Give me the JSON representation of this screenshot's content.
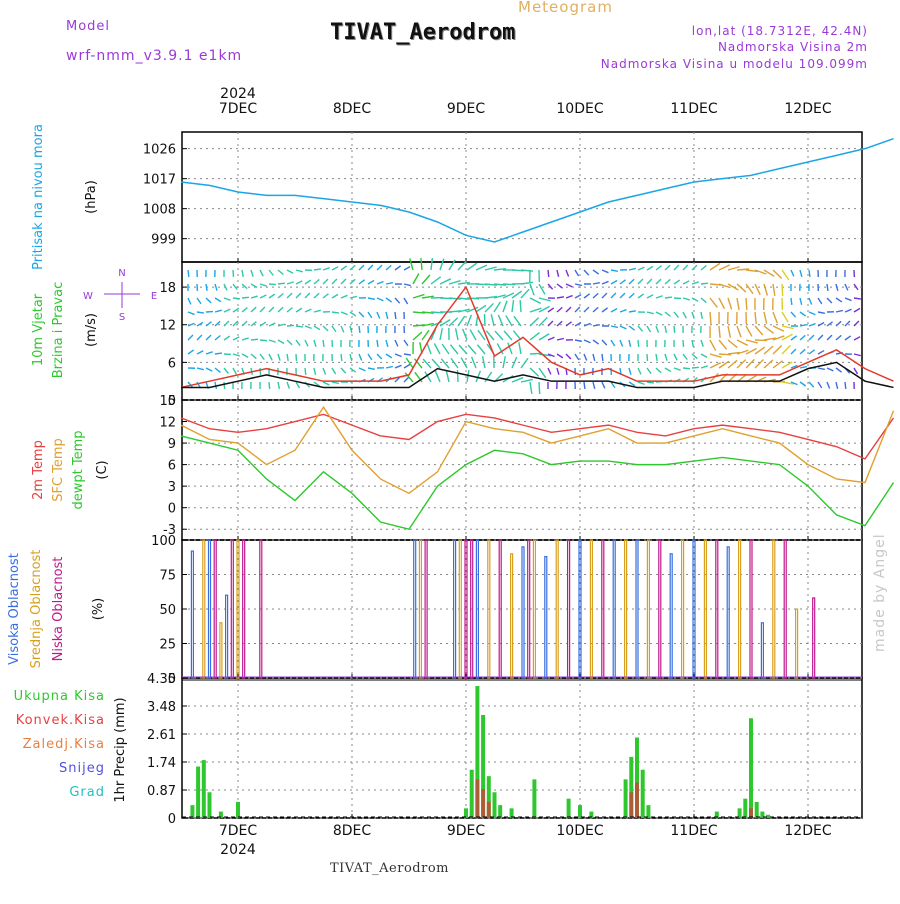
{
  "header": {
    "model_label": "Model",
    "model_name": "wrf-nmm_v3.9.1 e1km",
    "chart_type": "Meteogram",
    "title": "TIVAT_Aerodrom",
    "lonlat": "lon,lat (18.7312E, 42.4N)",
    "elevation": "Nadmorska Visina 2m",
    "model_elevation": "Nadmorska Visina u modelu 109.099m",
    "footer": "TIVAT_Aerodrom",
    "credit": "made by Angel"
  },
  "colors": {
    "pressure": "#1aa6e6",
    "wind_speed": "#111111",
    "wind_gust": "#e23a2a",
    "temp2m": "#e84040",
    "sfc_temp": "#e0a030",
    "dewpoint": "#2ec82e",
    "cloud_high": "#3a6ee0",
    "cloud_mid": "#d9a020",
    "cloud_low": "#c0188c",
    "precip_total": "#2ec82e",
    "precip_conv": "#d63a3a",
    "label_purple": "#9a3ad8",
    "grid": "#888888"
  },
  "chart_data": [
    {
      "type": "line",
      "panel": "pressure",
      "ylabel": [
        "Pritisak na nivou mora",
        "(hPa)"
      ],
      "yticks": [
        999,
        1008,
        1017,
        1026
      ],
      "ylim": [
        992,
        1031
      ],
      "grid": true,
      "series": [
        {
          "x": [
            0,
            0.25,
            0.5,
            0.75,
            1.0,
            1.25,
            1.5,
            1.75,
            2.0,
            2.25,
            2.5,
            2.75,
            3.0,
            3.25,
            3.5,
            3.75,
            4.0,
            4.25,
            4.5,
            4.75,
            5.0,
            5.25,
            5.5,
            5.75,
            6.0,
            6.25
          ],
          "values": [
            1016,
            1015,
            1013,
            1012,
            1012,
            1011,
            1010,
            1009,
            1007,
            1004,
            1000,
            998,
            1001,
            1004,
            1007,
            1010,
            1012,
            1014,
            1016,
            1017,
            1018,
            1020,
            1022,
            1024,
            1026,
            1029
          ]
        }
      ]
    },
    {
      "type": "line",
      "panel": "wind",
      "ylabel": [
        "10m Vjetar",
        "Brzina i Pravac",
        "(m/s)"
      ],
      "yticks": [
        0,
        6,
        12,
        18
      ],
      "ylim": [
        0,
        22
      ],
      "grid": true,
      "compass": {
        "n": "N",
        "s": "S",
        "e": "E",
        "w": "W"
      },
      "series": [
        {
          "x": [
            0,
            0.25,
            0.5,
            0.75,
            1.0,
            1.25,
            1.5,
            1.75,
            2.0,
            2.25,
            2.5,
            2.75,
            3.0,
            3.25,
            3.5,
            3.75,
            4.0,
            4.25,
            4.5,
            4.75,
            5.0,
            5.25,
            5.5,
            5.75,
            6.0,
            6.25
          ],
          "values": [
            2,
            3,
            4,
            5,
            4,
            3,
            3,
            3,
            4,
            12,
            18,
            7,
            10,
            6,
            4,
            5,
            3,
            3,
            3,
            4,
            4,
            4,
            6,
            8,
            5,
            3
          ]
        },
        {
          "x": [
            0,
            0.25,
            0.5,
            0.75,
            1.0,
            1.25,
            1.5,
            1.75,
            2.0,
            2.25,
            2.5,
            2.75,
            3.0,
            3.25,
            3.5,
            3.75,
            4.0,
            4.25,
            4.5,
            4.75,
            5.0,
            5.25,
            5.5,
            5.75,
            6.0,
            6.25
          ],
          "values": [
            2,
            2,
            3,
            4,
            3,
            2,
            2,
            2,
            2,
            5,
            4,
            3,
            4,
            3,
            3,
            3,
            2,
            2,
            2,
            3,
            3,
            3,
            5,
            6,
            3,
            2
          ]
        }
      ]
    },
    {
      "type": "line",
      "panel": "temperature",
      "ylabel": [
        "2m Temp",
        "SFC Temp",
        "dewpt Temp",
        "(C)"
      ],
      "yticks": [
        -3,
        0,
        3,
        6,
        9,
        12,
        15
      ],
      "ylim": [
        -4.5,
        15
      ],
      "grid": true,
      "series": [
        {
          "name": "2m Temp",
          "x": [
            0,
            0.25,
            0.5,
            0.75,
            1.0,
            1.25,
            1.5,
            1.75,
            2.0,
            2.25,
            2.5,
            2.75,
            3.0,
            3.25,
            3.5,
            3.75,
            4.0,
            4.25,
            4.5,
            4.75,
            5.0,
            5.25,
            5.5,
            5.75,
            6.0,
            6.25
          ],
          "values": [
            12.5,
            11,
            10.5,
            11,
            12,
            13,
            11.5,
            10,
            9.5,
            12,
            13,
            12.5,
            11.5,
            10.5,
            11,
            11.5,
            10.5,
            10,
            11,
            11.5,
            11,
            10.5,
            9.5,
            8.5,
            6.8,
            12.5
          ]
        },
        {
          "name": "SFC Temp",
          "x": [
            0,
            0.25,
            0.5,
            0.75,
            1.0,
            1.25,
            1.5,
            1.75,
            2.0,
            2.25,
            2.5,
            2.75,
            3.0,
            3.25,
            3.5,
            3.75,
            4.0,
            4.25,
            4.5,
            4.75,
            5.0,
            5.25,
            5.5,
            5.75,
            6.0,
            6.25
          ],
          "values": [
            11.5,
            9.5,
            9,
            6,
            8,
            14,
            8,
            4,
            2,
            5,
            12,
            11,
            10.5,
            9,
            10,
            11,
            9,
            9,
            10,
            11,
            10,
            9,
            6,
            4,
            3.5,
            13.5
          ]
        },
        {
          "name": "dewpt Temp",
          "x": [
            0,
            0.25,
            0.5,
            0.75,
            1.0,
            1.25,
            1.5,
            1.75,
            2.0,
            2.25,
            2.5,
            2.75,
            3.0,
            3.25,
            3.5,
            3.75,
            4.0,
            4.25,
            4.5,
            4.75,
            5.0,
            5.25,
            5.5,
            5.75,
            6.0,
            6.25
          ],
          "values": [
            10,
            9,
            8,
            4,
            1,
            5,
            2,
            -2,
            -3,
            3,
            6,
            8,
            7.5,
            6,
            6.5,
            6.5,
            6,
            6,
            6.5,
            7,
            6.5,
            6,
            3,
            -1,
            -2.5,
            3.5
          ]
        }
      ]
    },
    {
      "type": "bar",
      "panel": "clouds",
      "ylabel": [
        "Visoka Oblacnost",
        "Srednja Oblacnost",
        "Niska Oblacnost",
        "(%)"
      ],
      "yticks": [
        0,
        25,
        50,
        75,
        100
      ],
      "ylim": [
        0,
        100
      ],
      "grid": true,
      "series": [
        {
          "name": "Visoka Oblacnost",
          "x": [
            0.1,
            0.25,
            0.4,
            2.05,
            2.4,
            2.6,
            3.0,
            3.2,
            3.5,
            3.8,
            4.0,
            4.3,
            4.5,
            4.8,
            5.1
          ],
          "values": [
            92,
            100,
            60,
            100,
            100,
            100,
            95,
            88,
            100,
            100,
            100,
            90,
            100,
            95,
            40
          ]
        },
        {
          "name": "Srednja Oblacnost",
          "x": [
            0.2,
            0.35,
            0.5,
            2.1,
            2.45,
            2.7,
            2.9,
            3.1,
            3.3,
            3.6,
            3.9,
            4.1,
            4.4,
            4.6,
            4.9,
            5.2,
            5.4
          ],
          "values": [
            100,
            40,
            100,
            100,
            100,
            100,
            90,
            100,
            100,
            100,
            100,
            100,
            100,
            100,
            100,
            100,
            50
          ]
        },
        {
          "name": "Niska Oblacnost",
          "x": [
            0.3,
            0.45,
            0.55,
            0.7,
            2.15,
            2.5,
            2.55,
            2.8,
            3.05,
            3.4,
            3.7,
            4.2,
            4.7,
            5.0,
            5.3,
            5.55
          ],
          "values": [
            100,
            100,
            100,
            100,
            100,
            100,
            100,
            100,
            100,
            100,
            100,
            100,
            100,
            100,
            100,
            58
          ]
        }
      ]
    },
    {
      "type": "bar",
      "panel": "precip",
      "ylabel": [
        "1hr Precip (mm)"
      ],
      "legend": [
        "Ukupna Kisa",
        "Konvek.Kisa",
        "Zaledj.Kisa",
        "Snijeg",
        "Grad"
      ],
      "yticks": [
        0,
        0.87,
        1.74,
        2.61,
        3.48,
        4.35
      ],
      "ylim": [
        0,
        4.35
      ],
      "grid": true,
      "series": [
        {
          "name": "Ukupna Kisa",
          "x": [
            0.1,
            0.15,
            0.2,
            0.25,
            0.35,
            0.5,
            2.5,
            2.55,
            2.6,
            2.65,
            2.7,
            2.75,
            2.8,
            2.9,
            3.1,
            3.4,
            3.5,
            3.6,
            3.9,
            3.95,
            4.0,
            4.05,
            4.1,
            4.7,
            4.9,
            4.95,
            5.0,
            5.05,
            5.1,
            5.15
          ],
          "values": [
            0.4,
            1.6,
            1.8,
            0.8,
            0.2,
            0.5,
            0.3,
            1.5,
            4.1,
            3.2,
            1.3,
            0.8,
            0.4,
            0.3,
            1.2,
            0.6,
            0.4,
            0.2,
            1.2,
            1.9,
            2.5,
            1.5,
            0.4,
            0.2,
            0.3,
            0.6,
            3.1,
            0.5,
            0.2,
            0.1
          ]
        },
        {
          "name": "Konvek.Kisa",
          "x": [
            2.6,
            2.65,
            2.7,
            3.95,
            4.0,
            5.0
          ],
          "values": [
            1.2,
            0.9,
            0.5,
            0.8,
            1.1,
            0.3
          ]
        }
      ]
    }
  ],
  "time_axis": {
    "year": "2024",
    "days": [
      "7DEC",
      "8DEC",
      "9DEC",
      "10DEC",
      "11DEC",
      "12DEC"
    ]
  }
}
